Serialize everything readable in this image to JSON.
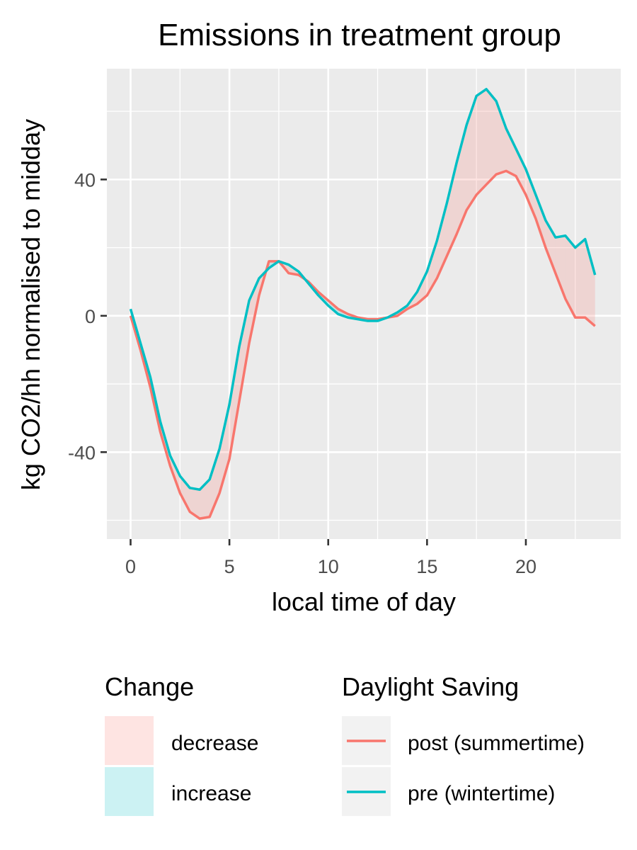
{
  "chart_data": {
    "type": "line",
    "title": "Emissions in treatment group",
    "xlabel": "local time of day",
    "ylabel": "kg CO2/hh normalised to midday",
    "xlim": [
      -1.2,
      24.8
    ],
    "ylim": [
      -65.5,
      72.5
    ],
    "x_ticks": [
      0,
      5,
      10,
      15,
      20
    ],
    "y_ticks": [
      -40,
      0,
      40
    ],
    "grid": true,
    "legend_position": "bottom",
    "x": [
      0,
      0.5,
      1,
      1.5,
      2,
      2.5,
      3,
      3.5,
      4,
      4.5,
      5,
      5.5,
      6,
      6.5,
      7,
      7.5,
      8,
      8.5,
      9,
      9.5,
      10,
      10.5,
      11,
      11.5,
      12,
      12.5,
      13,
      13.5,
      14,
      14.5,
      15,
      15.5,
      16,
      16.5,
      17,
      17.5,
      18,
      18.5,
      19,
      19.5,
      20,
      20.5,
      21,
      21.5,
      22,
      22.5,
      23,
      23.5
    ],
    "series": [
      {
        "name": "post (summertime)",
        "color": "#F8766D",
        "values": [
          0,
          -10,
          -21,
          -34,
          -44,
          -52,
          -57.5,
          -59.5,
          -59,
          -52,
          -42,
          -25,
          -8,
          6,
          16,
          16,
          12.5,
          12,
          10,
          7,
          4.5,
          2,
          0.5,
          -0.5,
          -1,
          -1,
          -0.5,
          0,
          2,
          3.5,
          6,
          11,
          17.5,
          24,
          31,
          35.5,
          38.5,
          41.5,
          42.5,
          41,
          35.5,
          28.5,
          20,
          12.5,
          5,
          -0.5,
          -0.5,
          -3
        ]
      },
      {
        "name": "pre (wintertime)",
        "color": "#00BFC4",
        "values": [
          2,
          -8,
          -18,
          -31,
          -41,
          -47,
          -50.5,
          -51,
          -48,
          -39,
          -26,
          -9,
          4.5,
          11,
          14,
          16,
          15,
          13,
          9.5,
          6,
          3,
          0.5,
          -0.5,
          -1,
          -1.5,
          -1.5,
          -0.5,
          1,
          3,
          7,
          13,
          22,
          33,
          45,
          56,
          64.5,
          66.5,
          63,
          55,
          49,
          43,
          35.5,
          28,
          23,
          23.5,
          20,
          22.5,
          12
        ]
      }
    ],
    "legends": [
      {
        "title": "Change",
        "entries": [
          {
            "label": "decrease",
            "color": "#F8766D"
          },
          {
            "label": "increase",
            "color": "#00BFC4"
          }
        ]
      },
      {
        "title": "Daylight Saving",
        "entries": [
          {
            "label": "post (summertime)",
            "color": "#F8766D"
          },
          {
            "label": "pre (wintertime)",
            "color": "#00BFC4"
          }
        ]
      }
    ]
  }
}
